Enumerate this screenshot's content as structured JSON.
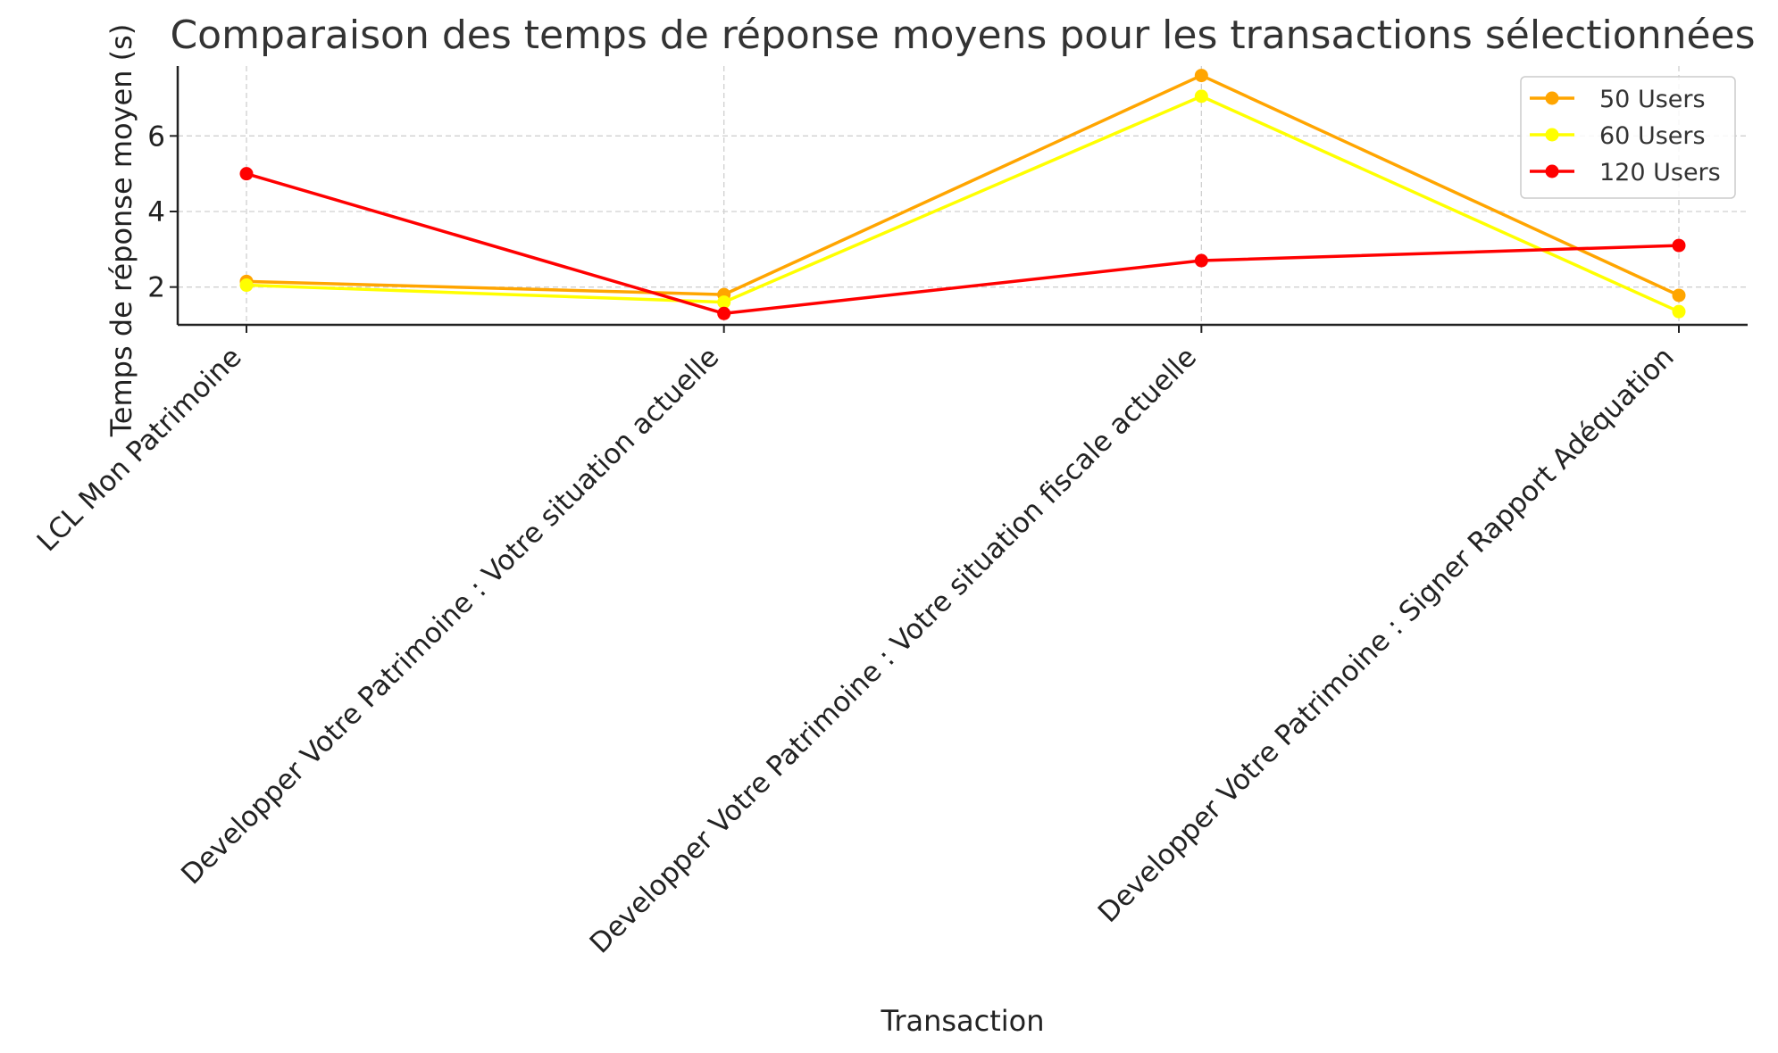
{
  "chart_data": {
    "type": "line",
    "title": "Comparaison des temps de réponse moyens pour les transactions sélectionnées",
    "xlabel": "Transaction",
    "ylabel": "Temps de réponse moyen (s)",
    "categories": [
      "LCL Mon Patrimoine",
      "Developper Votre Patrimoine : Votre situation actuelle",
      "Developper Votre Patrimoine : Votre situation fiscale actuelle",
      "Developper Votre Patrimoine : Signer Rapport Adéquation"
    ],
    "yticks": [
      "2",
      "4",
      "6"
    ],
    "ylim": [
      1,
      7.85
    ],
    "grid": true,
    "legend_position": "top-right",
    "series": [
      {
        "name": "50 Users",
        "color": "#FFA500",
        "values": [
          2.15,
          1.8,
          7.6,
          1.78
        ]
      },
      {
        "name": "60 Users",
        "color": "#FFFF00",
        "values": [
          2.05,
          1.6,
          7.05,
          1.35
        ]
      },
      {
        "name": "120 Users",
        "color": "#FF0000",
        "values": [
          5.0,
          1.3,
          2.7,
          3.1
        ]
      }
    ]
  }
}
